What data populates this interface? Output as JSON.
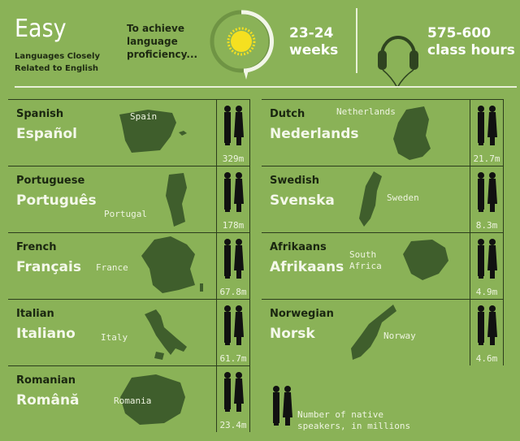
{
  "header": {
    "level": "Easy",
    "level_desc_line1": "Languages Closely",
    "level_desc_line2": "Related to English",
    "intro_line1": "To achieve",
    "intro_line2": "language",
    "intro_line3": "proficiency...",
    "weeks_line1": "23-24",
    "weeks_line2": "weeks",
    "hours_line1": "575-600",
    "hours_line2": "class hours",
    "icons": [
      "sun-icon",
      "progress-ring",
      "headphones-icon"
    ],
    "sun_color": "#f5e020"
  },
  "languages": [
    {
      "english": "Spanish",
      "native": "Español",
      "country": "Spain",
      "speakers": "329m"
    },
    {
      "english": "Portuguese",
      "native": "Português",
      "country": "Portugal",
      "speakers": "178m"
    },
    {
      "english": "French",
      "native": "Français",
      "country": "France",
      "speakers": "67.8m"
    },
    {
      "english": "Italian",
      "native": "Italiano",
      "country": "Italy",
      "speakers": "61.7m"
    },
    {
      "english": "Romanian",
      "native": "Română",
      "country": "Romania",
      "speakers": "23.4m"
    },
    {
      "english": "Dutch",
      "native": "Nederlands",
      "country": "Netherlands",
      "speakers": "21.7m"
    },
    {
      "english": "Swedish",
      "native": "Svenska",
      "country": "Sweden",
      "speakers": "8.3m"
    },
    {
      "english": "Afrikaans",
      "native": "Afrikaans",
      "country_line1": "South",
      "country_line2": "Africa",
      "speakers": "4.9m"
    },
    {
      "english": "Norwegian",
      "native": "Norsk",
      "country": "Norway",
      "speakers": "4.6m"
    }
  ],
  "legend": {
    "line1": "Number of native",
    "line2": "speakers, in millions"
  },
  "colors": {
    "background": "#8ab257",
    "map": "#3f5e2c",
    "accent_text": "#f4f8ea"
  }
}
